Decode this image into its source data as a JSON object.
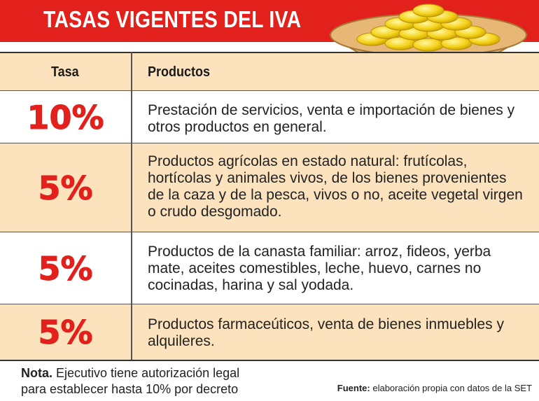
{
  "title": "TASAS VIGENTES DEL IVA",
  "table": {
    "headers": {
      "rate": "Tasa",
      "products": "Productos"
    },
    "rows": [
      {
        "rate": "10%",
        "description": "Prestación de servicios, venta e importación de bienes y otros productos en general."
      },
      {
        "rate": "5%",
        "description": "Productos agrícolas en estado natural: frutícolas, hortícolas y animales vivos, de los bienes provenientes de la caza y de la pesca, vivos o no, aceite vegetal virgen o crudo desgomado."
      },
      {
        "rate": "5%",
        "description": "Productos de la canasta familiar: arroz, fideos, yerba mate, aceites comestibles, leche, huevo, carnes no cocinadas, harina y sal yodada."
      },
      {
        "rate": "5%",
        "description": "Productos farmaceúticos, venta de bienes inmuebles y alquileres."
      }
    ]
  },
  "note": {
    "label": "Nota.",
    "text": "Ejecutivo tiene autorización legal para establecer hasta 10% por decreto"
  },
  "source": {
    "label": "Fuente:",
    "text": "elaboración propia con datos de la SET"
  },
  "colors": {
    "red": "#e2211c",
    "shade": "#fde3bd",
    "coin": "#f5d21a"
  }
}
